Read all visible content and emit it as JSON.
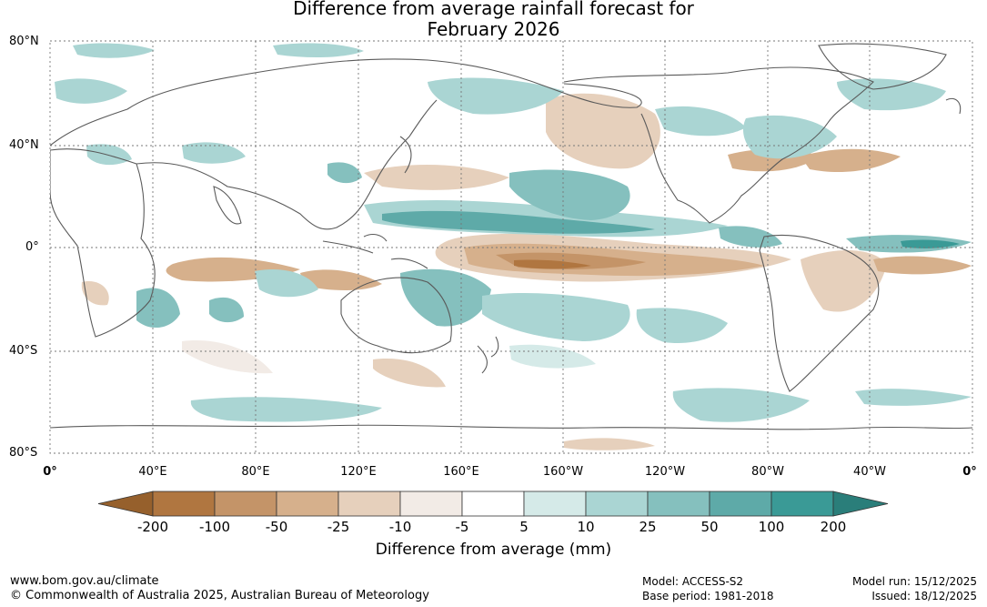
{
  "title": {
    "line1": "Difference from average rainfall forecast for",
    "line2": "February 2026"
  },
  "map": {
    "lat_labels": [
      "80°N",
      "40°N",
      "0°",
      "40°S",
      "80°S"
    ],
    "lon_labels": [
      "0°",
      "40°E",
      "80°E",
      "120°E",
      "160°E",
      "160°W",
      "120°W",
      "80°W",
      "40°W",
      "0°"
    ],
    "colors": {
      "coast": "#5a5a5a",
      "grid": "#777777"
    }
  },
  "legend": {
    "ticks": [
      "-200",
      "-100",
      "-50",
      "-25",
      "-10",
      "-5",
      "5",
      "10",
      "25",
      "50",
      "100",
      "200"
    ],
    "colors": [
      "#96602c",
      "#b07640",
      "#c49468",
      "#d6b08c",
      "#e6d0bc",
      "#f2ebe6",
      "#ffffff",
      "#d5eae8",
      "#aad5d3",
      "#85c0be",
      "#5eaaa8",
      "#3a9a96",
      "#2a7e7a"
    ],
    "axis_label": "Difference from average (mm)"
  },
  "footer": {
    "url": "www.bom.gov.au/climate",
    "copyright": "© Commonwealth of Australia 2025, Australian Bureau of Meteorology",
    "model": "Model: ACCESS-S2",
    "base_period": "Base period: 1981-2018",
    "model_run": "Model run: 15/12/2025",
    "issued": "Issued: 18/12/2025"
  }
}
